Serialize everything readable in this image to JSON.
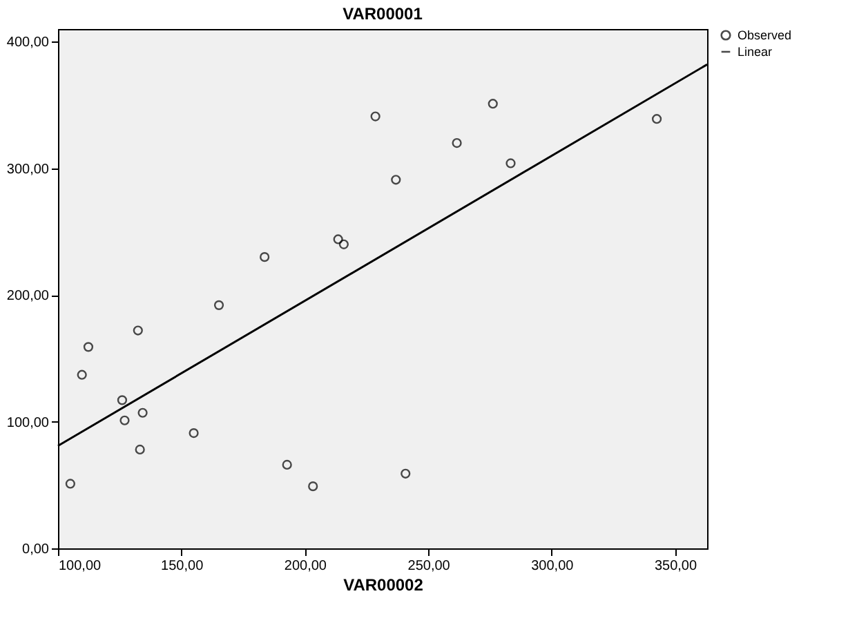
{
  "chart_data": {
    "type": "scatter",
    "title": "VAR00001",
    "xlabel": "VAR00002",
    "legend": "top right",
    "grid": false,
    "marker": "circle",
    "xlim": [
      100,
      363
    ],
    "ylim": [
      0,
      410
    ],
    "xticks": [
      {
        "value": 100,
        "label": "100,00"
      },
      {
        "value": 150,
        "label": "150,00"
      },
      {
        "value": 200,
        "label": "200,00"
      },
      {
        "value": 250,
        "label": "250,00"
      },
      {
        "value": 300,
        "label": "300,00"
      },
      {
        "value": 350,
        "label": "350,00"
      }
    ],
    "yticks": [
      {
        "value": 0,
        "label": "0,00"
      },
      {
        "value": 100,
        "label": "100,00"
      },
      {
        "value": 200,
        "label": "200,00"
      },
      {
        "value": 300,
        "label": "300,00"
      },
      {
        "value": 400,
        "label": "400,00"
      }
    ],
    "series": [
      {
        "name": "Observed",
        "color": "#000000",
        "x": [
          105,
          109.7,
          112.3,
          126,
          127,
          132.4,
          134.3,
          133.2,
          155,
          165.2,
          183.7,
          192.8,
          203.3,
          213.5,
          215.8,
          228.6,
          236.9,
          240.8,
          261.6,
          276.2,
          283.4,
          342.6
        ],
        "values": [
          51,
          137,
          159,
          117,
          101,
          172,
          107,
          78,
          91,
          192,
          230,
          66,
          49,
          244,
          240,
          341,
          291,
          59,
          320,
          351,
          304,
          339
        ]
      },
      {
        "name": "Linear",
        "type": "line",
        "color": "#000000",
        "x": [
          100,
          363
        ],
        "values": [
          81,
          382
        ],
        "line_style": "solid",
        "marker": "none"
      }
    ]
  }
}
